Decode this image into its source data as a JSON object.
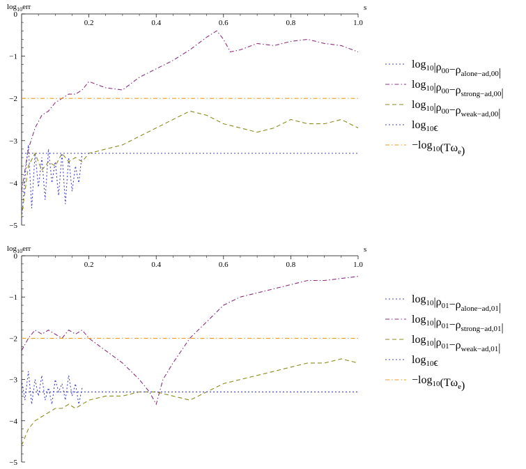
{
  "chart_data": [
    {
      "type": "line",
      "xlabel": "s",
      "ylabel": "log10err",
      "xlim": [
        0,
        1.0
      ],
      "ylim": [
        -5,
        0
      ],
      "x_ticks": [
        "0.2",
        "0.4",
        "0.6",
        "0.8",
        "1.0"
      ],
      "y_ticks": [
        "0",
        "−1",
        "−2",
        "−3",
        "−4",
        "−5"
      ],
      "legend_position": "right",
      "series": [
        {
          "name": "log10|ρ00−ρalone−ad,00|",
          "color": "#3b3bd6",
          "dash": "dotted",
          "x": [
            0,
            0.01,
            0.02,
            0.03,
            0.04,
            0.05,
            0.06,
            0.07,
            0.08,
            0.09,
            0.1,
            0.11,
            0.12,
            0.13,
            0.14,
            0.15,
            0.16,
            0.17,
            0.18
          ],
          "y": [
            -4.9,
            -3.9,
            -3.1,
            -4.6,
            -3.3,
            -4.1,
            -3.4,
            -4.4,
            -3.2,
            -4.0,
            -3.5,
            -4.3,
            -3.3,
            -4.5,
            -3.4,
            -4.2,
            -3.6,
            -4.0,
            -3.3
          ]
        },
        {
          "name": "log10|ρ00−ρstrong−ad,00|",
          "color": "#8b2f7c",
          "dash": "dashdot",
          "x": [
            0.0,
            0.02,
            0.04,
            0.06,
            0.08,
            0.1,
            0.12,
            0.14,
            0.16,
            0.18,
            0.2,
            0.25,
            0.3,
            0.35,
            0.4,
            0.45,
            0.5,
            0.55,
            0.58,
            0.6,
            0.62,
            0.65,
            0.7,
            0.75,
            0.8,
            0.85,
            0.9,
            0.95,
            1.0
          ],
          "y": [
            -4.2,
            -3.2,
            -2.7,
            -2.4,
            -2.3,
            -2.1,
            -2.0,
            -1.9,
            -1.9,
            -1.8,
            -1.6,
            -1.75,
            -1.8,
            -1.5,
            -1.3,
            -1.1,
            -0.85,
            -0.55,
            -0.4,
            -0.6,
            -0.9,
            -0.85,
            -0.7,
            -0.75,
            -0.65,
            -0.6,
            -0.7,
            -0.75,
            -0.9
          ]
        },
        {
          "name": "log10|ρ00−ρweak−ad,00|",
          "color": "#8a8a1e",
          "dash": "dashed",
          "x": [
            0.0,
            0.02,
            0.04,
            0.06,
            0.08,
            0.1,
            0.12,
            0.14,
            0.16,
            0.18,
            0.2,
            0.25,
            0.3,
            0.35,
            0.4,
            0.45,
            0.5,
            0.55,
            0.6,
            0.65,
            0.7,
            0.75,
            0.8,
            0.85,
            0.9,
            0.95,
            1.0
          ],
          "y": [
            -4.8,
            -3.6,
            -3.3,
            -3.7,
            -3.5,
            -3.6,
            -3.3,
            -3.5,
            -3.4,
            -3.5,
            -3.3,
            -3.2,
            -3.1,
            -2.9,
            -2.7,
            -2.5,
            -2.3,
            -2.4,
            -2.6,
            -2.7,
            -2.8,
            -2.7,
            -2.5,
            -2.6,
            -2.6,
            -2.5,
            -2.7
          ]
        },
        {
          "name": "log10ϵ",
          "color": "#3b3bd6",
          "dash": "dotted",
          "x": [
            0,
            1.0
          ],
          "y": [
            -3.3,
            -3.3
          ]
        },
        {
          "name": "−log10(Tωe)",
          "color": "#f39a1e",
          "dash": "dashdot",
          "x": [
            0,
            1.0
          ],
          "y": [
            -2.0,
            -2.0
          ]
        }
      ]
    },
    {
      "type": "line",
      "xlabel": "s",
      "ylabel": "log10err",
      "xlim": [
        0,
        1.0
      ],
      "ylim": [
        -5,
        0
      ],
      "x_ticks": [
        "0.2",
        "0.4",
        "0.6",
        "0.8",
        "1.0"
      ],
      "y_ticks": [
        "0",
        "−1",
        "−2",
        "−3",
        "−4",
        "−5"
      ],
      "legend_position": "right",
      "series": [
        {
          "name": "log10|ρ01−ρalone−ad,01|",
          "color": "#3b3bd6",
          "dash": "dotted",
          "x": [
            0,
            0.01,
            0.02,
            0.03,
            0.04,
            0.05,
            0.06,
            0.07,
            0.08,
            0.09,
            0.1,
            0.11,
            0.12,
            0.13,
            0.14,
            0.15,
            0.16,
            0.17,
            0.18
          ],
          "y": [
            -3.0,
            -3.5,
            -2.8,
            -3.6,
            -3.0,
            -3.4,
            -2.9,
            -3.5,
            -3.2,
            -3.6,
            -3.0,
            -3.3,
            -3.1,
            -3.5,
            -2.9,
            -3.4,
            -3.1,
            -3.6,
            -3.2
          ]
        },
        {
          "name": "log10|ρ01−ρstrong−ad,01|",
          "color": "#8b2f7c",
          "dash": "dashdot",
          "x": [
            0.0,
            0.02,
            0.04,
            0.06,
            0.08,
            0.1,
            0.12,
            0.14,
            0.16,
            0.18,
            0.2,
            0.25,
            0.3,
            0.35,
            0.38,
            0.4,
            0.42,
            0.45,
            0.5,
            0.55,
            0.6,
            0.65,
            0.7,
            0.75,
            0.8,
            0.85,
            0.9,
            0.95,
            1.0
          ],
          "y": [
            -2.3,
            -2.0,
            -1.8,
            -1.9,
            -1.8,
            -1.9,
            -2.0,
            -1.8,
            -1.9,
            -1.8,
            -2.0,
            -2.3,
            -2.6,
            -3.0,
            -3.3,
            -3.6,
            -3.0,
            -2.6,
            -2.0,
            -1.6,
            -1.2,
            -1.0,
            -0.9,
            -0.8,
            -0.7,
            -0.6,
            -0.6,
            -0.55,
            -0.5
          ]
        },
        {
          "name": "log10|ρ01−ρweak−ad,01|",
          "color": "#8a8a1e",
          "dash": "dashed",
          "x": [
            0.0,
            0.02,
            0.04,
            0.06,
            0.08,
            0.1,
            0.12,
            0.14,
            0.16,
            0.18,
            0.2,
            0.25,
            0.3,
            0.35,
            0.4,
            0.45,
            0.5,
            0.55,
            0.6,
            0.65,
            0.7,
            0.75,
            0.8,
            0.85,
            0.9,
            0.95,
            1.0
          ],
          "y": [
            -4.6,
            -4.2,
            -4.0,
            -3.9,
            -3.8,
            -3.7,
            -3.7,
            -3.6,
            -3.7,
            -3.6,
            -3.5,
            -3.4,
            -3.4,
            -3.3,
            -3.3,
            -3.4,
            -3.5,
            -3.3,
            -3.1,
            -3.0,
            -2.9,
            -2.8,
            -2.7,
            -2.6,
            -2.6,
            -2.5,
            -2.6
          ]
        },
        {
          "name": "log10ϵ",
          "color": "#3b3bd6",
          "dash": "dotted",
          "x": [
            0,
            1.0
          ],
          "y": [
            -3.3,
            -3.3
          ]
        },
        {
          "name": "−log10(Tωe)",
          "color": "#f39a1e",
          "dash": "dashdot",
          "x": [
            0,
            1.0
          ],
          "y": [
            -2.0,
            -2.0
          ]
        }
      ]
    }
  ]
}
